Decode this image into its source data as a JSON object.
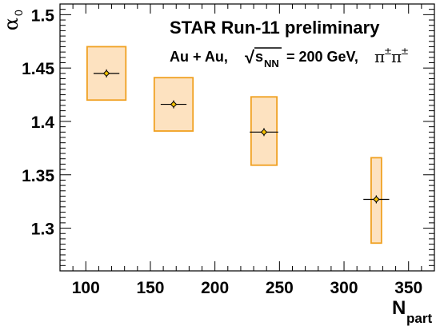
{
  "chart_data": {
    "type": "scatter",
    "title": "",
    "annotations": {
      "line1": "STAR Run-11 preliminary",
      "line2_prefix": "Au + Au,",
      "sqrt_symbol": "√",
      "s_base": "s",
      "s_sub": "NN",
      "energy": "= 200 GeV,",
      "species": "π",
      "species_sup": "±",
      "species2": "π",
      "species2_sup": "±"
    },
    "xlabel": {
      "base": "N",
      "sub": "part"
    },
    "ylabel": {
      "base": "α",
      "sub": "0"
    },
    "xlim": [
      80,
      370
    ],
    "ylim": [
      1.26,
      1.51
    ],
    "xticks": [
      100,
      150,
      200,
      250,
      300,
      350
    ],
    "xtick_labels": [
      "100",
      "150",
      "200",
      "250",
      "300",
      "350"
    ],
    "yticks": [
      1.3,
      1.35,
      1.4,
      1.45,
      1.5
    ],
    "ytick_labels": [
      "1.3",
      "1.35",
      "1.4",
      "1.45",
      "1.5"
    ],
    "grid": false,
    "series": [
      {
        "points": [
          {
            "x": 116,
            "y": 1.445,
            "x_half_width": 5,
            "sys_x_half": 15,
            "sys_low": 1.42,
            "sys_high": 1.47
          },
          {
            "x": 168,
            "y": 1.416,
            "x_half_width": 5,
            "sys_x_half": 15,
            "sys_low": 1.391,
            "sys_high": 1.441
          },
          {
            "x": 238,
            "y": 1.39,
            "x_half_width": 6,
            "sys_x_half": 10,
            "sys_low": 1.359,
            "sys_high": 1.423
          },
          {
            "x": 325,
            "y": 1.327,
            "x_half_width": 5,
            "sys_x_half": 4,
            "sys_low": 1.286,
            "sys_high": 1.366
          }
        ]
      }
    ],
    "colors": {
      "box_fill": "#fde2c0",
      "box_stroke": "#f0a020",
      "marker_fill": "#f5c000",
      "marker_stroke": "#000000",
      "axis": "#000000"
    }
  }
}
